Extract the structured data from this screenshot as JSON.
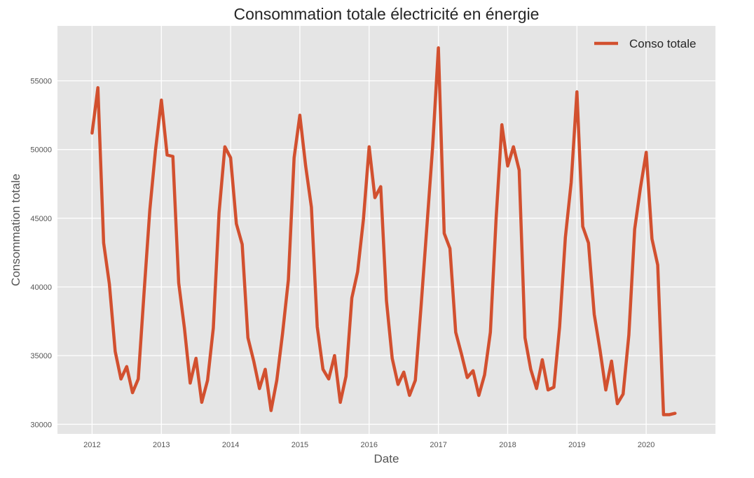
{
  "chart_data": {
    "type": "line",
    "title": "Consommation totale électricité en énergie",
    "xlabel": "Date",
    "ylabel": "Consommation totale",
    "legend": {
      "position": "top-right",
      "entries": [
        "Conso totale"
      ]
    },
    "grid": true,
    "style": {
      "background": "#e5e5e5",
      "grid_color": "#ffffff",
      "line_color": "#d2502f"
    },
    "xlim": [
      "2011-07",
      "2021-01"
    ],
    "ylim": [
      29300,
      59000
    ],
    "x_ticks": [
      "2012",
      "2013",
      "2014",
      "2015",
      "2016",
      "2017",
      "2018",
      "2019",
      "2020"
    ],
    "y_ticks": [
      "30000",
      "35000",
      "40000",
      "45000",
      "50000",
      "55000"
    ],
    "series": [
      {
        "name": "Conso totale",
        "x": [
          "2012-01",
          "2012-02",
          "2012-03",
          "2012-04",
          "2012-05",
          "2012-06",
          "2012-07",
          "2012-08",
          "2012-09",
          "2012-10",
          "2012-11",
          "2012-12",
          "2013-01",
          "2013-02",
          "2013-03",
          "2013-04",
          "2013-05",
          "2013-06",
          "2013-07",
          "2013-08",
          "2013-09",
          "2013-10",
          "2013-11",
          "2013-12",
          "2014-01",
          "2014-02",
          "2014-03",
          "2014-04",
          "2014-05",
          "2014-06",
          "2014-07",
          "2014-08",
          "2014-09",
          "2014-10",
          "2014-11",
          "2014-12",
          "2015-01",
          "2015-02",
          "2015-03",
          "2015-04",
          "2015-05",
          "2015-06",
          "2015-07",
          "2015-08",
          "2015-09",
          "2015-10",
          "2015-11",
          "2015-12",
          "2016-01",
          "2016-02",
          "2016-03",
          "2016-04",
          "2016-05",
          "2016-06",
          "2016-07",
          "2016-08",
          "2016-09",
          "2016-10",
          "2016-11",
          "2016-12",
          "2017-01",
          "2017-02",
          "2017-03",
          "2017-04",
          "2017-05",
          "2017-06",
          "2017-07",
          "2017-08",
          "2017-09",
          "2017-10",
          "2017-11",
          "2017-12",
          "2018-01",
          "2018-02",
          "2018-03",
          "2018-04",
          "2018-05",
          "2018-06",
          "2018-07",
          "2018-08",
          "2018-09",
          "2018-10",
          "2018-11",
          "2018-12",
          "2019-01",
          "2019-02",
          "2019-03",
          "2019-04",
          "2019-05",
          "2019-06",
          "2019-07",
          "2019-08",
          "2019-09",
          "2019-10",
          "2019-11",
          "2019-12",
          "2020-01",
          "2020-02",
          "2020-03",
          "2020-04",
          "2020-05",
          "2020-06"
        ],
        "values": [
          51200,
          54500,
          43200,
          40200,
          35300,
          33300,
          34200,
          32300,
          33300,
          39600,
          45600,
          50000,
          53600,
          49600,
          49500,
          40300,
          37000,
          33000,
          34800,
          31600,
          33200,
          37000,
          45400,
          50200,
          49400,
          44600,
          43100,
          36300,
          34600,
          32600,
          34000,
          31000,
          33200,
          36600,
          40500,
          49400,
          52500,
          48800,
          45800,
          37100,
          34000,
          33300,
          35000,
          31600,
          33500,
          39200,
          41100,
          44900,
          50200,
          46500,
          47300,
          39000,
          34800,
          32900,
          33800,
          32100,
          33200,
          38600,
          44400,
          50200,
          57400,
          43900,
          42800,
          36700,
          35100,
          33400,
          33900,
          32100,
          33600,
          36700,
          45000,
          51800,
          48800,
          50200,
          48500,
          36300,
          34000,
          32600,
          34700,
          32500,
          32700,
          37100,
          43600,
          47600,
          54200,
          44400,
          43200,
          38000,
          35400,
          32500,
          34600,
          31500,
          32200,
          36500,
          44200,
          47200,
          49800,
          43500,
          41600,
          30700,
          30700,
          30800
        ]
      }
    ]
  }
}
